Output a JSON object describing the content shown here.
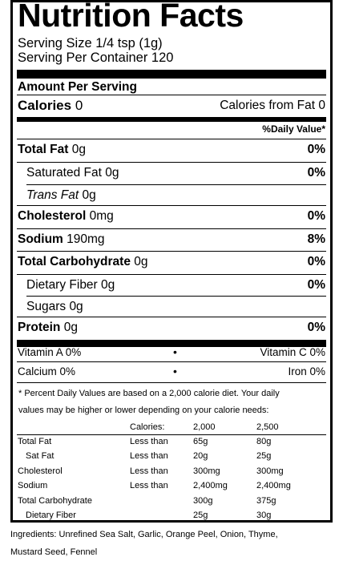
{
  "label": {
    "title": "Nutrition Facts",
    "serving_size": "Serving Size 1/4 tsp (1g)",
    "servings_per_container": "Serving Per Container 120",
    "amount_per_serving": "Amount Per Serving",
    "calories_label": "Calories",
    "calories_value": "0",
    "calories_from_fat": "Calories from Fat 0",
    "daily_value_header": "%Daily Value*",
    "nutrients": [
      {
        "label": "Total Fat",
        "amount": "0g",
        "dv": "0%"
      },
      {
        "label": "Saturated Fat",
        "amount": "0g",
        "dv": "0%"
      },
      {
        "label": "Trans Fat",
        "amount": "0g",
        "dv": ""
      },
      {
        "label": "Cholesterol",
        "amount": "0mg",
        "dv": "0%"
      },
      {
        "label": "Sodium",
        "amount": "190mg",
        "dv": "8%"
      },
      {
        "label": "Total Carbohydrate",
        "amount": "0g",
        "dv": "0%"
      },
      {
        "label": "Dietary Fiber",
        "amount": "0g",
        "dv": "0%"
      },
      {
        "label": "Sugars",
        "amount": "0g",
        "dv": ""
      },
      {
        "label": "Protein",
        "amount": "0g",
        "dv": "0%"
      }
    ],
    "vitamins": [
      {
        "left": "Vitamin A 0%",
        "bullet": "•",
        "right": "Vitamin C 0%"
      },
      {
        "left": "Calcium 0%",
        "bullet": "•",
        "right": "Iron 0%"
      }
    ],
    "footnote_line1": "* Percent Daily Values are based on a 2,000 calorie diet. Your daily",
    "footnote_line2": "values may be higher or lower depending on your calorie needs:",
    "dv_table": {
      "header": [
        "Calories:",
        "2,000",
        "2,500"
      ],
      "rows": [
        {
          "nutrient": "Total Fat",
          "qual": "Less than",
          "a": "65g",
          "b": "80g"
        },
        {
          "nutrient": "Sat Fat",
          "qual": "Less than",
          "a": "20g",
          "b": "25g"
        },
        {
          "nutrient": "Cholesterol",
          "qual": "Less than",
          "a": "300mg",
          "b": "300mg"
        },
        {
          "nutrient": "Sodium",
          "qual": "Less than",
          "a": "2,400mg",
          "b": "2,400mg"
        },
        {
          "nutrient": "Total Carbohydrate",
          "qual": "",
          "a": "300g",
          "b": "375g"
        },
        {
          "nutrient": "Dietary Fiber",
          "qual": "",
          "a": "25g",
          "b": "30g"
        }
      ]
    }
  },
  "ingredients": {
    "line1": "Ingredients: Unrefined Sea Salt, Garlic, Orange Peel, Onion, Thyme,",
    "line2": "Mustard Seed, Fennel"
  }
}
